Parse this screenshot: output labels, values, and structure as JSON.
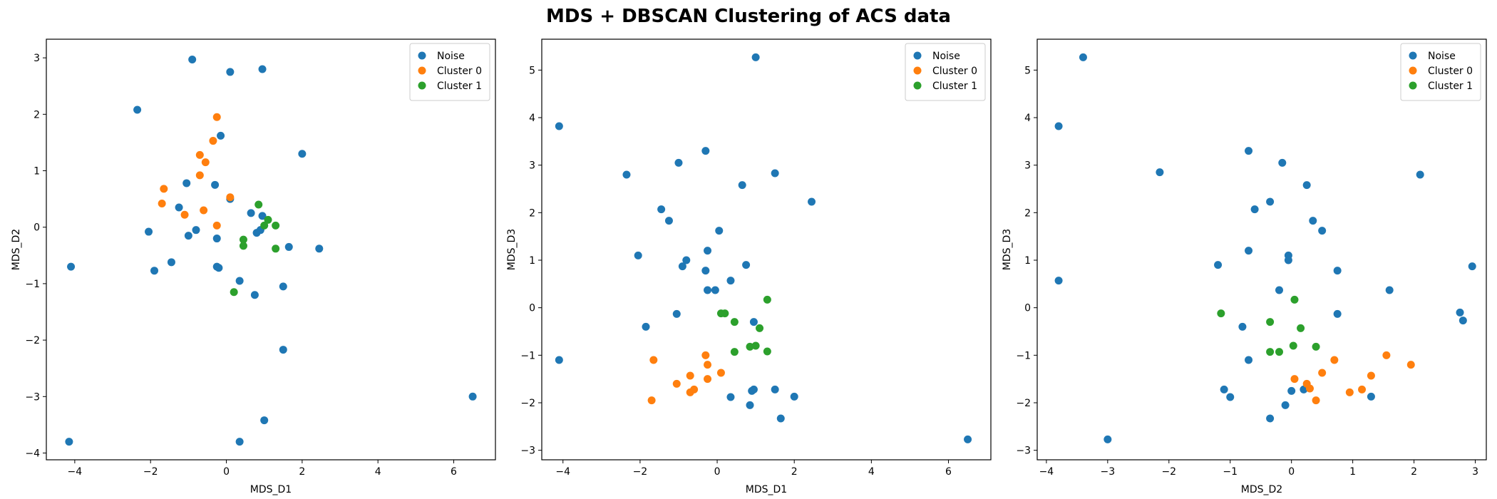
{
  "figure": {
    "title": "MDS + DBSCAN Clustering of ACS data"
  },
  "chart_data": [
    {
      "type": "scatter",
      "xlabel": "MDS_D1",
      "ylabel": "MDS_D2",
      "xlim": [
        -4.75,
        7.1
      ],
      "ylim": [
        -4.12,
        3.33
      ],
      "xticks": [
        -4,
        -2,
        0,
        2,
        4,
        6
      ],
      "yticks": [
        -4,
        -3,
        -2,
        -1,
        0,
        1,
        2,
        3
      ],
      "legend": "top-right",
      "series": [
        {
          "name": "Noise",
          "color": "#1f77b4",
          "points": [
            [
              -4.1,
              -0.7
            ],
            [
              -0.9,
              2.97
            ],
            [
              0.1,
              2.75
            ],
            [
              0.95,
              2.8
            ],
            [
              -2.35,
              2.08
            ],
            [
              2.0,
              1.3
            ],
            [
              -0.15,
              1.62
            ],
            [
              -1.05,
              0.78
            ],
            [
              -0.3,
              0.75
            ],
            [
              0.1,
              0.5
            ],
            [
              -1.25,
              0.35
            ],
            [
              0.65,
              0.25
            ],
            [
              0.95,
              0.2
            ],
            [
              -2.05,
              -0.08
            ],
            [
              -0.8,
              -0.05
            ],
            [
              -1.0,
              -0.15
            ],
            [
              -0.25,
              -0.2
            ],
            [
              0.8,
              -0.1
            ],
            [
              0.9,
              -0.05
            ],
            [
              1.65,
              -0.35
            ],
            [
              2.45,
              -0.38
            ],
            [
              -1.45,
              -0.62
            ],
            [
              -1.9,
              -0.77
            ],
            [
              -0.25,
              -0.7
            ],
            [
              -0.2,
              -0.72
            ],
            [
              0.35,
              -0.95
            ],
            [
              0.75,
              -1.2
            ],
            [
              1.5,
              -1.05
            ],
            [
              1.5,
              -2.17
            ],
            [
              6.5,
              -3.0
            ],
            [
              1.0,
              -3.42
            ],
            [
              0.35,
              -3.8
            ],
            [
              -4.15,
              -3.8
            ]
          ]
        },
        {
          "name": "Cluster 0",
          "color": "#ff7f0e",
          "points": [
            [
              -0.25,
              1.95
            ],
            [
              -0.35,
              1.53
            ],
            [
              -0.7,
              1.28
            ],
            [
              -0.55,
              1.15
            ],
            [
              -0.7,
              0.92
            ],
            [
              -1.65,
              0.68
            ],
            [
              -1.7,
              0.42
            ],
            [
              0.1,
              0.53
            ],
            [
              -0.6,
              0.3
            ],
            [
              -1.1,
              0.22
            ],
            [
              -0.25,
              0.03
            ]
          ]
        },
        {
          "name": "Cluster 1",
          "color": "#2ca02c",
          "points": [
            [
              0.85,
              0.4
            ],
            [
              1.1,
              0.13
            ],
            [
              1.0,
              0.03
            ],
            [
              1.3,
              0.03
            ],
            [
              0.45,
              -0.22
            ],
            [
              0.45,
              -0.33
            ],
            [
              1.3,
              -0.38
            ],
            [
              0.2,
              -1.15
            ]
          ]
        }
      ]
    },
    {
      "type": "scatter",
      "xlabel": "MDS_D1",
      "ylabel": "MDS_D3",
      "xlim": [
        -4.55,
        7.1
      ],
      "ylim": [
        -3.2,
        5.65
      ],
      "xticks": [
        -4,
        -2,
        0,
        2,
        4,
        6
      ],
      "yticks": [
        -3,
        -2,
        -1,
        0,
        1,
        2,
        3,
        4,
        5
      ],
      "legend": "top-right",
      "series": [
        {
          "name": "Noise",
          "color": "#1f77b4",
          "points": [
            [
              1.0,
              5.27
            ],
            [
              -4.1,
              3.82
            ],
            [
              -0.3,
              3.3
            ],
            [
              -1.0,
              3.05
            ],
            [
              -2.35,
              2.8
            ],
            [
              1.5,
              2.83
            ],
            [
              0.65,
              2.58
            ],
            [
              2.45,
              2.23
            ],
            [
              -1.45,
              2.07
            ],
            [
              -1.25,
              1.83
            ],
            [
              0.05,
              1.62
            ],
            [
              -0.25,
              1.2
            ],
            [
              -2.05,
              1.1
            ],
            [
              -0.8,
              1.0
            ],
            [
              -0.9,
              0.87
            ],
            [
              0.75,
              0.9
            ],
            [
              -0.3,
              0.78
            ],
            [
              -0.25,
              0.37
            ],
            [
              -0.05,
              0.37
            ],
            [
              0.35,
              0.57
            ],
            [
              -1.05,
              -0.13
            ],
            [
              0.95,
              -0.3
            ],
            [
              -1.85,
              -0.4
            ],
            [
              -4.1,
              -1.1
            ],
            [
              0.35,
              -1.88
            ],
            [
              0.85,
              -2.05
            ],
            [
              0.9,
              -1.75
            ],
            [
              0.95,
              -1.72
            ],
            [
              1.5,
              -1.72
            ],
            [
              2.0,
              -1.87
            ],
            [
              1.65,
              -2.33
            ],
            [
              6.5,
              -2.77
            ]
          ]
        },
        {
          "name": "Cluster 0",
          "color": "#ff7f0e",
          "points": [
            [
              -1.65,
              -1.1
            ],
            [
              -0.3,
              -1.0
            ],
            [
              -0.25,
              -1.2
            ],
            [
              0.1,
              -1.37
            ],
            [
              -0.7,
              -1.43
            ],
            [
              -0.25,
              -1.5
            ],
            [
              -1.05,
              -1.6
            ],
            [
              -0.6,
              -1.72
            ],
            [
              -0.7,
              -1.78
            ],
            [
              -1.7,
              -1.95
            ]
          ]
        },
        {
          "name": "Cluster 1",
          "color": "#2ca02c",
          "points": [
            [
              1.3,
              0.17
            ],
            [
              0.1,
              -0.12
            ],
            [
              0.2,
              -0.12
            ],
            [
              0.45,
              -0.3
            ],
            [
              1.1,
              -0.43
            ],
            [
              0.85,
              -0.82
            ],
            [
              1.0,
              -0.8
            ],
            [
              0.45,
              -0.93
            ],
            [
              1.3,
              -0.92
            ]
          ]
        }
      ]
    },
    {
      "type": "scatter",
      "xlabel": "MDS_D2",
      "ylabel": "MDS_D3",
      "xlim": [
        -4.15,
        3.18
      ],
      "ylim": [
        -3.2,
        5.65
      ],
      "xticks": [
        -4,
        -3,
        -2,
        -1,
        0,
        1,
        2,
        3
      ],
      "yticks": [
        -3,
        -2,
        -1,
        0,
        1,
        2,
        3,
        4,
        5
      ],
      "legend": "top-right",
      "series": [
        {
          "name": "Noise",
          "color": "#1f77b4",
          "points": [
            [
              -3.4,
              5.27
            ],
            [
              -3.8,
              3.82
            ],
            [
              -0.7,
              3.3
            ],
            [
              -0.15,
              3.05
            ],
            [
              -2.15,
              2.85
            ],
            [
              2.1,
              2.8
            ],
            [
              0.25,
              2.58
            ],
            [
              -0.35,
              2.23
            ],
            [
              -0.6,
              2.07
            ],
            [
              0.35,
              1.83
            ],
            [
              0.5,
              1.62
            ],
            [
              -0.7,
              1.2
            ],
            [
              -0.05,
              1.1
            ],
            [
              -0.05,
              1.0
            ],
            [
              -1.2,
              0.9
            ],
            [
              2.95,
              0.87
            ],
            [
              0.75,
              0.78
            ],
            [
              -0.2,
              0.37
            ],
            [
              1.6,
              0.37
            ],
            [
              -3.8,
              0.57
            ],
            [
              2.75,
              -0.1
            ],
            [
              2.8,
              -0.27
            ],
            [
              0.75,
              -0.13
            ],
            [
              -0.8,
              -0.4
            ],
            [
              -0.7,
              -1.1
            ],
            [
              -1.1,
              -1.72
            ],
            [
              -1.0,
              -1.88
            ],
            [
              0.0,
              -1.75
            ],
            [
              0.2,
              -1.72
            ],
            [
              1.3,
              -1.87
            ],
            [
              -0.1,
              -2.05
            ],
            [
              -0.35,
              -2.33
            ],
            [
              -3.0,
              -2.77
            ]
          ]
        },
        {
          "name": "Cluster 0",
          "color": "#ff7f0e",
          "points": [
            [
              1.55,
              -1.0
            ],
            [
              1.95,
              -1.2
            ],
            [
              0.7,
              -1.1
            ],
            [
              0.5,
              -1.37
            ],
            [
              0.05,
              -1.5
            ],
            [
              1.3,
              -1.43
            ],
            [
              0.25,
              -1.6
            ],
            [
              0.3,
              -1.7
            ],
            [
              0.95,
              -1.78
            ],
            [
              1.15,
              -1.72
            ],
            [
              0.4,
              -1.95
            ]
          ]
        },
        {
          "name": "Cluster 1",
          "color": "#2ca02c",
          "points": [
            [
              -1.15,
              -0.12
            ],
            [
              0.05,
              0.17
            ],
            [
              -0.35,
              -0.3
            ],
            [
              0.15,
              -0.43
            ],
            [
              0.03,
              -0.8
            ],
            [
              0.4,
              -0.82
            ],
            [
              -0.35,
              -0.93
            ],
            [
              -0.2,
              -0.93
            ]
          ]
        }
      ]
    }
  ]
}
